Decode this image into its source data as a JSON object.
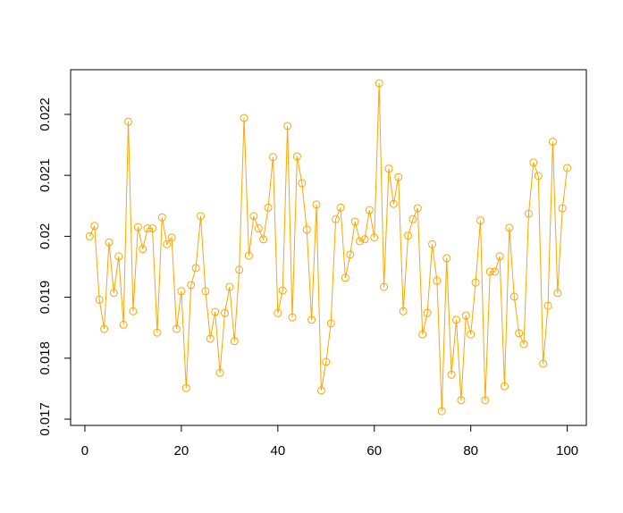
{
  "chart_data": {
    "type": "line",
    "color": "#FFA500",
    "markers": "open-circle",
    "x": [
      1,
      2,
      3,
      4,
      5,
      6,
      7,
      8,
      9,
      10,
      11,
      12,
      13,
      14,
      15,
      16,
      17,
      18,
      19,
      20,
      21,
      22,
      23,
      24,
      25,
      26,
      27,
      28,
      29,
      30,
      31,
      32,
      33,
      34,
      35,
      36,
      37,
      38,
      39,
      40,
      41,
      42,
      43,
      44,
      45,
      46,
      47,
      48,
      49,
      50,
      51,
      52,
      53,
      54,
      55,
      56,
      57,
      58,
      59,
      60,
      61,
      62,
      63,
      64,
      65,
      66,
      67,
      68,
      69,
      70,
      71,
      72,
      73,
      74,
      75,
      76,
      77,
      78,
      79,
      80,
      81,
      82,
      83,
      84,
      85,
      86,
      87,
      88,
      89,
      90,
      91,
      92,
      93,
      94,
      95,
      96,
      97,
      98,
      99,
      100
    ],
    "values": [
      0.02,
      0.02017,
      0.01896,
      0.01848,
      0.0199,
      0.01907,
      0.01967,
      0.01855,
      0.02188,
      0.01877,
      0.02015,
      0.01979,
      0.02013,
      0.02013,
      0.01842,
      0.02031,
      0.01987,
      0.01998,
      0.01848,
      0.0191,
      0.01751,
      0.0192,
      0.01948,
      0.02033,
      0.0191,
      0.01832,
      0.01876,
      0.01776,
      0.01874,
      0.01917,
      0.01828,
      0.01945,
      0.02194,
      0.01968,
      0.02033,
      0.02013,
      0.01995,
      0.02047,
      0.0213,
      0.01874,
      0.01911,
      0.02181,
      0.01867,
      0.02131,
      0.02087,
      0.02011,
      0.01863,
      0.02052,
      0.01747,
      0.01794,
      0.01857,
      0.02028,
      0.02047,
      0.01932,
      0.0197,
      0.02024,
      0.01992,
      0.01995,
      0.02043,
      0.01998,
      0.02251,
      0.01917,
      0.02111,
      0.02053,
      0.02097,
      0.01877,
      0.02001,
      0.02028,
      0.02046,
      0.01839,
      0.01874,
      0.01987,
      0.01927,
      0.01713,
      0.01964,
      0.01773,
      0.01863,
      0.01731,
      0.0187,
      0.01839,
      0.01924,
      0.02026,
      0.01731,
      0.01942,
      0.01942,
      0.01967,
      0.01754,
      0.02014,
      0.01901,
      0.01841,
      0.01823,
      0.02037,
      0.02121,
      0.02099,
      0.01791,
      0.01886,
      0.02155,
      0.01907,
      0.02046,
      0.02112
    ],
    "xlim": [
      -2.96,
      103.96
    ],
    "xticks": [
      0,
      20,
      40,
      60,
      80,
      100
    ],
    "ylim": [
      0.016897,
      0.022733
    ],
    "yticks": [
      0.017,
      0.018,
      0.019,
      0.02,
      0.021,
      0.022
    ]
  }
}
